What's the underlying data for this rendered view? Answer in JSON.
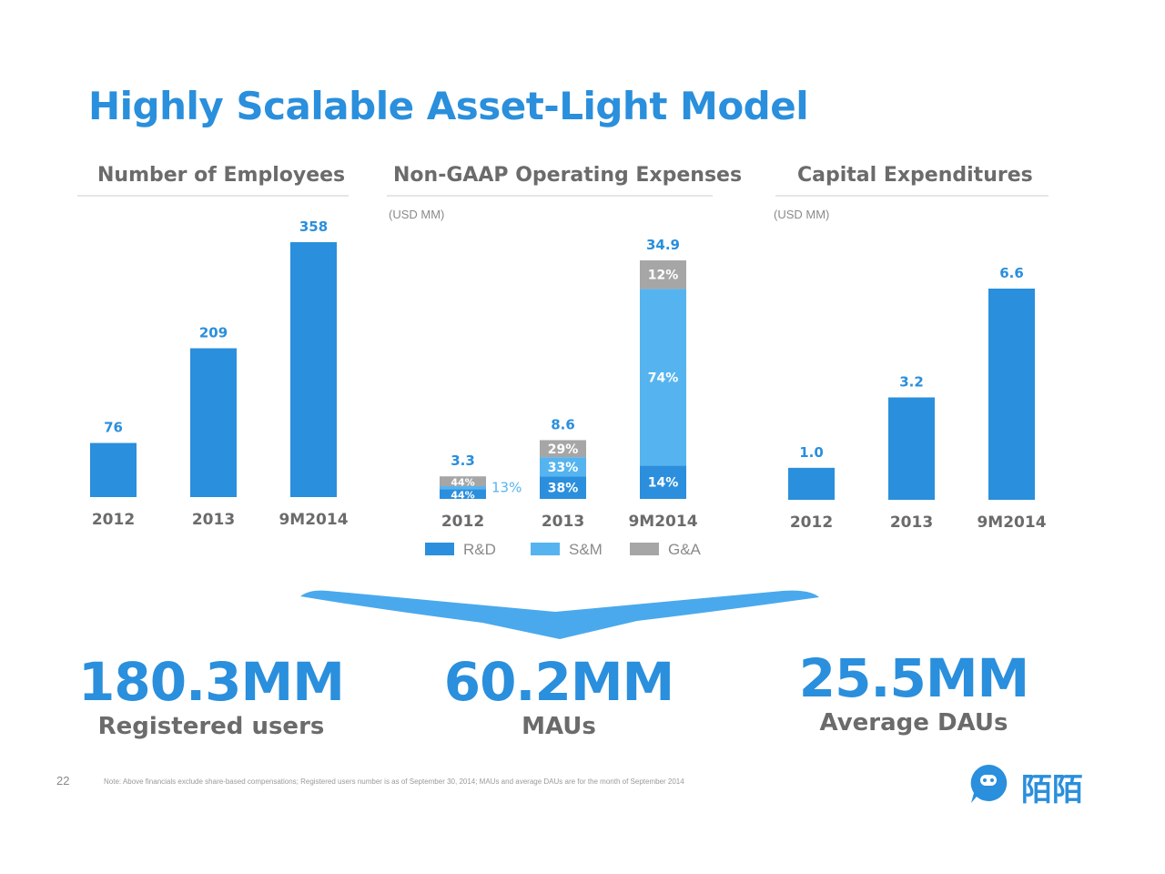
{
  "slide": {
    "title": "Highly Scalable Asset-Light Model",
    "page_number": "22",
    "note": "Note: Above financials exclude share-based compensations; Registered users number is as of September 30, 2014; MAUs and average DAUs are for the month of September 2014",
    "logo_text": "陌陌",
    "logo_icon": "chat-bubble-icon"
  },
  "colors": {
    "accent": "#2a8fdc",
    "rd": "#2b8fdd",
    "sm": "#55b4f0",
    "ga": "#a6a6a6",
    "text_gray": "#6b6b6b"
  },
  "chart_data": [
    {
      "type": "bar",
      "title": "Number of Employees",
      "categories": [
        "2012",
        "2013",
        "9M2014"
      ],
      "values": [
        76,
        209,
        358
      ],
      "data_labels": [
        "76",
        "209",
        "358"
      ],
      "ylim": [
        0,
        358
      ]
    },
    {
      "type": "bar",
      "stacked": true,
      "title": "Non-GAAP Operating Expenses",
      "unit": "(USD MM)",
      "categories": [
        "2012",
        "2013",
        "9M2014"
      ],
      "totals": [
        3.3,
        8.6,
        34.9
      ],
      "total_labels": [
        "3.3",
        "8.6",
        "34.9"
      ],
      "series": [
        {
          "name": "R&D",
          "values_pct": [
            44,
            38,
            14
          ],
          "labels": [
            "44%",
            "38%",
            "14%"
          ]
        },
        {
          "name": "S&M",
          "values_pct": [
            13,
            33,
            74
          ],
          "labels": [
            "13%",
            "33%",
            "74%"
          ]
        },
        {
          "name": "G&A",
          "values_pct": [
            44,
            29,
            12
          ],
          "labels": [
            "44%",
            "29%",
            "12%"
          ]
        }
      ],
      "legend": [
        "R&D",
        "S&M",
        "G&A"
      ],
      "legend_position": "bottom",
      "ylim": [
        0,
        34.9
      ]
    },
    {
      "type": "bar",
      "title": "Capital Expenditures",
      "unit": "(USD MM)",
      "categories": [
        "2012",
        "2013",
        "9M2014"
      ],
      "values": [
        1.0,
        3.2,
        6.6
      ],
      "data_labels": [
        "1.0",
        "3.2",
        "6.6"
      ],
      "ylim": [
        0,
        6.6
      ]
    }
  ],
  "kpis": [
    {
      "value": "180.3MM",
      "label": "Registered users"
    },
    {
      "value": "60.2MM",
      "label": "MAUs"
    },
    {
      "value": "25.5MM",
      "label": "Average DAUs"
    }
  ]
}
